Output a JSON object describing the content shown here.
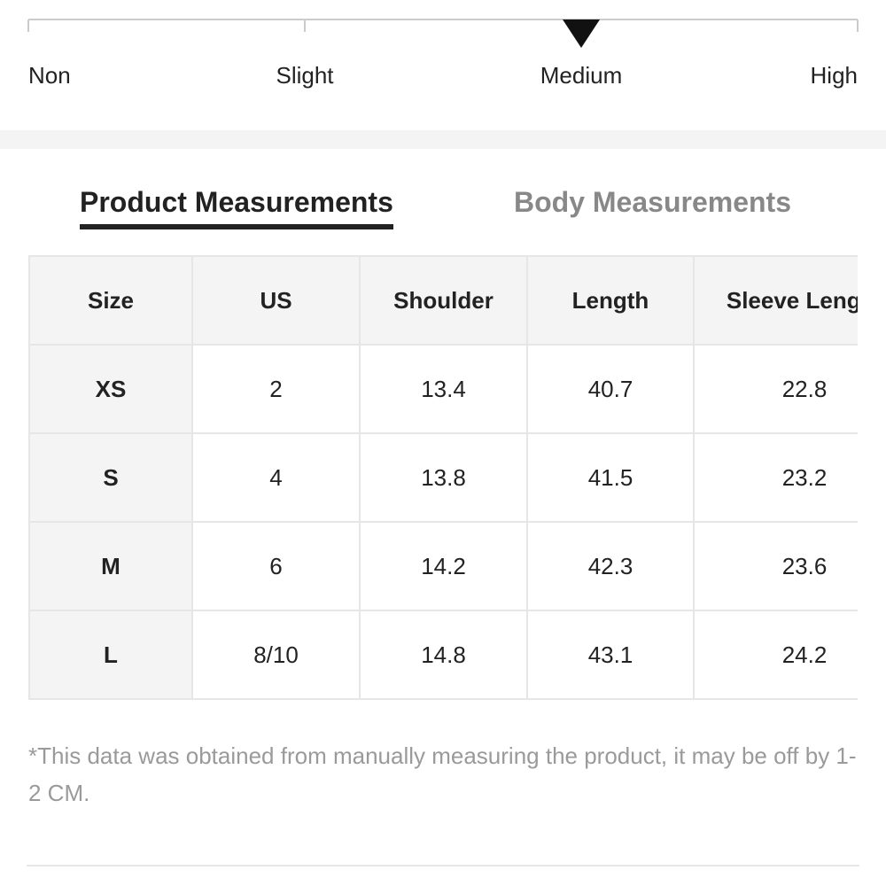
{
  "stretch": {
    "labels": [
      "Non",
      "Slight",
      "Medium",
      "High"
    ],
    "selected_index": 2
  },
  "tabs": {
    "items": [
      "Product Measurements",
      "Body Measurements"
    ],
    "active_index": 0
  },
  "table": {
    "header": [
      "Size",
      "US",
      "Shoulder",
      "Length",
      "Sleeve Length"
    ],
    "rows": [
      [
        "XS",
        "2",
        "13.4",
        "40.7",
        "22.8"
      ],
      [
        "S",
        "4",
        "13.8",
        "41.5",
        "23.2"
      ],
      [
        "M",
        "6",
        "14.2",
        "42.3",
        "23.6"
      ],
      [
        "L",
        "8/10",
        "14.8",
        "43.1",
        "24.2"
      ]
    ]
  },
  "note": "*This data was obtained from manually measuring the product, it may be off by 1-2 CM."
}
